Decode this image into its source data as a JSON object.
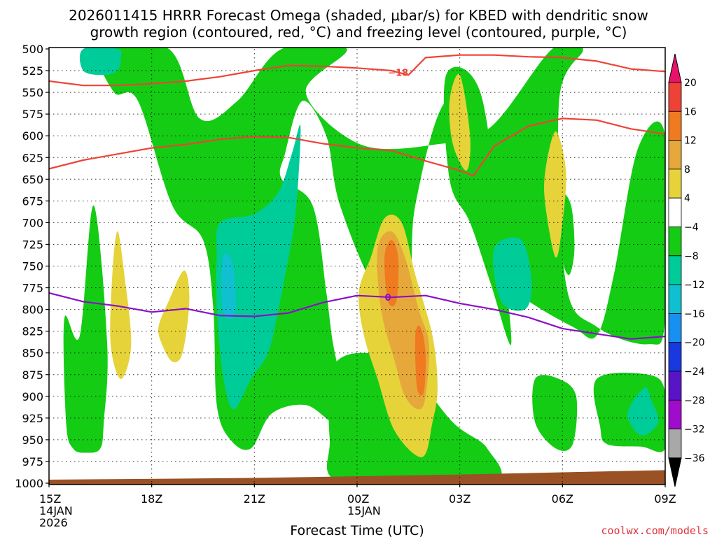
{
  "chart_data": {
    "type": "contour",
    "title_lines": [
      "2026011415 HRRR Forecast Omega (shaded, μbar/s) for KBED with dendritic snow",
      "growth region (contoured, red, °C) and freezing level (contoured, purple, °C)"
    ],
    "xlabel": "Forecast Time (UTC)",
    "credit": "coolwx.com/models",
    "x_range_hours": [
      0,
      18
    ],
    "y_range_mb": [
      500,
      1000
    ],
    "y_ticks": [
      500,
      525,
      550,
      575,
      600,
      625,
      650,
      675,
      700,
      725,
      750,
      775,
      800,
      825,
      850,
      875,
      900,
      925,
      950,
      975,
      1000
    ],
    "x_ticks": [
      {
        "hour": 0,
        "lines": [
          "15Z",
          "14JAN",
          "2026"
        ]
      },
      {
        "hour": 3,
        "lines": [
          "18Z"
        ]
      },
      {
        "hour": 6,
        "lines": [
          "21Z"
        ]
      },
      {
        "hour": 9,
        "lines": [
          "00Z",
          "15JAN"
        ]
      },
      {
        "hour": 12,
        "lines": [
          "03Z"
        ]
      },
      {
        "hour": 15,
        "lines": [
          "06Z"
        ]
      },
      {
        "hour": 18,
        "lines": [
          "09Z"
        ]
      }
    ],
    "colorbar": {
      "labels": [
        "20",
        "16",
        "12",
        "8",
        "4",
        "−4",
        "−8",
        "−12",
        "−16",
        "−20",
        "−24",
        "−28",
        "−32",
        "−36"
      ],
      "colors": [
        "#e8126a",
        "#ef4236",
        "#f07a20",
        "#e6a83a",
        "#e6d33a",
        "#ffffff",
        "#14cc14",
        "#00cc99",
        "#10c0d0",
        "#1890f0",
        "#1838e0",
        "#5a14c8",
        "#a00ccc",
        "#a8a8a8",
        "#000000"
      ]
    },
    "omega_fill_colors": {
      "green": "#14cc14",
      "teal": "#00cc99",
      "cyan": "#10c0d0",
      "yellow": "#e6d33a",
      "gold": "#e6a83a",
      "orange": "#f07a20"
    },
    "omega_regions": [
      {
        "level": "green",
        "points": [
          [
            1.5,
            500
          ],
          [
            3.5,
            500
          ],
          [
            4.4,
            580
          ],
          [
            5.5,
            560
          ],
          [
            6.8,
            500
          ],
          [
            8.7,
            500
          ],
          [
            7.5,
            550
          ],
          [
            9.1,
            610
          ],
          [
            11.3,
            610
          ],
          [
            12.9,
            590
          ],
          [
            14.7,
            500
          ],
          [
            15.6,
            500
          ],
          [
            14.9,
            560
          ],
          [
            15.1,
            770
          ],
          [
            16.0,
            820
          ],
          [
            17.5,
            840
          ],
          [
            18,
            810
          ],
          [
            18,
            600
          ],
          [
            17.2,
            615
          ],
          [
            16.5,
            760
          ],
          [
            16.0,
            830
          ],
          [
            15.3,
            820
          ],
          [
            14.0,
            790
          ],
          [
            13.2,
            760
          ],
          [
            12.8,
            600
          ],
          [
            11.6,
            560
          ],
          [
            10.7,
            680
          ],
          [
            10.5,
            780
          ],
          [
            9.6,
            780
          ],
          [
            8.5,
            680
          ],
          [
            8.1,
            600
          ],
          [
            7.4,
            560
          ],
          [
            6.9,
            620
          ],
          [
            6.8,
            650
          ],
          [
            7.7,
            680
          ],
          [
            8.1,
            780
          ],
          [
            8.3,
            840
          ],
          [
            8.7,
            920
          ],
          [
            8.3,
            930
          ],
          [
            7.5,
            910
          ],
          [
            6.5,
            920
          ],
          [
            5.9,
            960
          ],
          [
            5.3,
            950
          ],
          [
            4.9,
            910
          ],
          [
            4.8,
            800
          ],
          [
            4.5,
            720
          ],
          [
            3.6,
            680
          ],
          [
            2.6,
            560
          ],
          [
            1.9,
            550
          ]
        ]
      },
      {
        "level": "green",
        "points": [
          [
            8.4,
            860
          ],
          [
            10.2,
            860
          ],
          [
            11.8,
            930
          ],
          [
            12.8,
            960
          ],
          [
            12.9,
            1000
          ],
          [
            8.6,
            1000
          ],
          [
            8.2,
            950
          ]
        ]
      },
      {
        "level": "green",
        "points": [
          [
            11.6,
            530
          ],
          [
            12.6,
            550
          ],
          [
            13.2,
            720
          ],
          [
            13.5,
            840
          ],
          [
            12.9,
            770
          ],
          [
            12.3,
            700
          ],
          [
            11.7,
            650
          ]
        ]
      },
      {
        "level": "green",
        "points": [
          [
            0.9,
            830
          ],
          [
            1.3,
            680
          ],
          [
            1.7,
            840
          ],
          [
            1.6,
            930
          ],
          [
            1.5,
            960
          ],
          [
            1.1,
            965
          ],
          [
            0.7,
            960
          ],
          [
            0.5,
            930
          ],
          [
            0.45,
            810
          ]
        ]
      },
      {
        "level": "green",
        "points": [
          [
            14.2,
            880
          ],
          [
            14.9,
            880
          ],
          [
            15.4,
            900
          ],
          [
            15.3,
            955
          ],
          [
            14.8,
            960
          ],
          [
            14.2,
            930
          ]
        ]
      },
      {
        "level": "green",
        "points": [
          [
            16.0,
            880
          ],
          [
            17.5,
            875
          ],
          [
            18,
            895
          ],
          [
            18,
            960
          ],
          [
            17.3,
            958
          ],
          [
            16.3,
            955
          ],
          [
            16.1,
            935
          ]
        ]
      },
      {
        "level": "green",
        "points": [
          [
            14.95,
            670
          ],
          [
            15.25,
            680
          ],
          [
            15.35,
            730
          ],
          [
            15.2,
            760
          ],
          [
            15.0,
            740
          ]
        ]
      },
      {
        "level": "teal",
        "points": [
          [
            5.0,
            700
          ],
          [
            6.0,
            690
          ],
          [
            6.7,
            665
          ],
          [
            7.1,
            620
          ],
          [
            7.35,
            590
          ],
          [
            7.2,
            690
          ],
          [
            6.9,
            760
          ],
          [
            6.7,
            800
          ],
          [
            6.4,
            850
          ],
          [
            5.9,
            880
          ],
          [
            5.4,
            915
          ],
          [
            5.1,
            880
          ],
          [
            4.9,
            800
          ],
          [
            4.9,
            740
          ]
        ]
      },
      {
        "level": "teal",
        "points": [
          [
            13.0,
            730
          ],
          [
            13.8,
            720
          ],
          [
            14.1,
            770
          ],
          [
            13.9,
            800
          ],
          [
            13.2,
            790
          ]
        ]
      },
      {
        "level": "teal",
        "points": [
          [
            17.4,
            890
          ],
          [
            17.6,
            905
          ],
          [
            17.8,
            930
          ],
          [
            17.3,
            945
          ],
          [
            16.9,
            920
          ]
        ]
      },
      {
        "level": "teal",
        "points": [
          [
            1.0,
            500
          ],
          [
            2.0,
            500
          ],
          [
            2.1,
            510
          ],
          [
            2.0,
            525
          ],
          [
            1.6,
            530
          ],
          [
            1.0,
            525
          ]
        ]
      },
      {
        "level": "cyan",
        "points": [
          [
            5.08,
            740
          ],
          [
            5.35,
            745
          ],
          [
            5.45,
            800
          ],
          [
            5.2,
            810
          ],
          [
            5.05,
            790
          ]
        ]
      },
      {
        "level": "yellow",
        "points": [
          [
            9.4,
            740
          ],
          [
            9.8,
            695
          ],
          [
            10.3,
            700
          ],
          [
            10.7,
            760
          ],
          [
            11.2,
            830
          ],
          [
            11.35,
            890
          ],
          [
            11.2,
            930
          ],
          [
            10.9,
            970
          ],
          [
            10.1,
            940
          ],
          [
            9.6,
            880
          ],
          [
            9.2,
            830
          ],
          [
            9.05,
            780
          ]
        ]
      },
      {
        "level": "yellow",
        "points": [
          [
            1.85,
            760
          ],
          [
            2.0,
            710
          ],
          [
            2.2,
            760
          ],
          [
            2.4,
            840
          ],
          [
            2.1,
            880
          ],
          [
            1.8,
            840
          ]
        ]
      },
      {
        "level": "yellow",
        "points": [
          [
            3.2,
            820
          ],
          [
            3.5,
            790
          ],
          [
            3.95,
            755
          ],
          [
            4.1,
            790
          ],
          [
            3.9,
            850
          ],
          [
            3.6,
            860
          ],
          [
            3.3,
            840
          ]
        ]
      },
      {
        "level": "yellow",
        "points": [
          [
            11.7,
            560
          ],
          [
            12.0,
            530
          ],
          [
            12.3,
            600
          ],
          [
            12.2,
            640
          ],
          [
            11.8,
            610
          ]
        ]
      },
      {
        "level": "yellow",
        "points": [
          [
            14.5,
            640
          ],
          [
            14.8,
            595
          ],
          [
            15.1,
            640
          ],
          [
            15.0,
            700
          ],
          [
            14.8,
            740
          ],
          [
            14.5,
            680
          ]
        ]
      },
      {
        "level": "gold",
        "points": [
          [
            9.6,
            730
          ],
          [
            10.0,
            710
          ],
          [
            10.4,
            740
          ],
          [
            10.8,
            800
          ],
          [
            11.1,
            840
          ],
          [
            11.0,
            900
          ],
          [
            10.8,
            915
          ],
          [
            10.4,
            900
          ],
          [
            10.1,
            860
          ],
          [
            9.7,
            800
          ]
        ]
      },
      {
        "level": "orange",
        "points": [
          [
            9.8,
            740
          ],
          [
            10.0,
            720
          ],
          [
            10.2,
            740
          ],
          [
            10.15,
            790
          ],
          [
            9.9,
            790
          ]
        ]
      },
      {
        "level": "orange",
        "points": [
          [
            10.7,
            830
          ],
          [
            10.85,
            820
          ],
          [
            11.0,
            850
          ],
          [
            10.95,
            895
          ],
          [
            10.75,
            890
          ]
        ]
      }
    ],
    "contours": [
      {
        "name": "dgz-upper",
        "label": "−18",
        "label_hour": 10.2,
        "color": "#ef4236",
        "points": [
          [
            0,
            537
          ],
          [
            1,
            542
          ],
          [
            2,
            542
          ],
          [
            3,
            540
          ],
          [
            4,
            537
          ],
          [
            5,
            532
          ],
          [
            6,
            525
          ],
          [
            7,
            519
          ],
          [
            8,
            520
          ],
          [
            9,
            522
          ],
          [
            10,
            525
          ],
          [
            10.5,
            530
          ],
          [
            11,
            510
          ],
          [
            12,
            507
          ],
          [
            13,
            507
          ],
          [
            14,
            509
          ],
          [
            15,
            510
          ],
          [
            16,
            514
          ],
          [
            17,
            523
          ],
          [
            18,
            526
          ]
        ]
      },
      {
        "name": "dgz-lower",
        "label": "",
        "color": "#ef4236",
        "points": [
          [
            0,
            638
          ],
          [
            1,
            628
          ],
          [
            2,
            621
          ],
          [
            3,
            614
          ],
          [
            4,
            610
          ],
          [
            5,
            604
          ],
          [
            6,
            601
          ],
          [
            7,
            602
          ],
          [
            8,
            609
          ],
          [
            9,
            614
          ],
          [
            10,
            617
          ],
          [
            11,
            629
          ],
          [
            12,
            640
          ],
          [
            12.4,
            646
          ],
          [
            13,
            612
          ],
          [
            14,
            589
          ],
          [
            15,
            580
          ],
          [
            16,
            582
          ],
          [
            17,
            592
          ],
          [
            18,
            598
          ]
        ]
      },
      {
        "name": "freezing-level",
        "label": "0",
        "label_hour": 9.9,
        "color": "#8a10c8",
        "points": [
          [
            0,
            781
          ],
          [
            1,
            791
          ],
          [
            2,
            796
          ],
          [
            3,
            803
          ],
          [
            4,
            799
          ],
          [
            5,
            807
          ],
          [
            6,
            808
          ],
          [
            7,
            804
          ],
          [
            8,
            792
          ],
          [
            9,
            784
          ],
          [
            10,
            786
          ],
          [
            11,
            784
          ],
          [
            12,
            793
          ],
          [
            13,
            800
          ],
          [
            14,
            809
          ],
          [
            15,
            822
          ],
          [
            16,
            828
          ],
          [
            17,
            834
          ],
          [
            18,
            831
          ]
        ]
      }
    ],
    "surface_color": "#9a5224",
    "surface": [
      [
        0,
        996
      ],
      [
        6,
        994
      ],
      [
        12,
        990
      ],
      [
        18,
        985
      ]
    ]
  }
}
